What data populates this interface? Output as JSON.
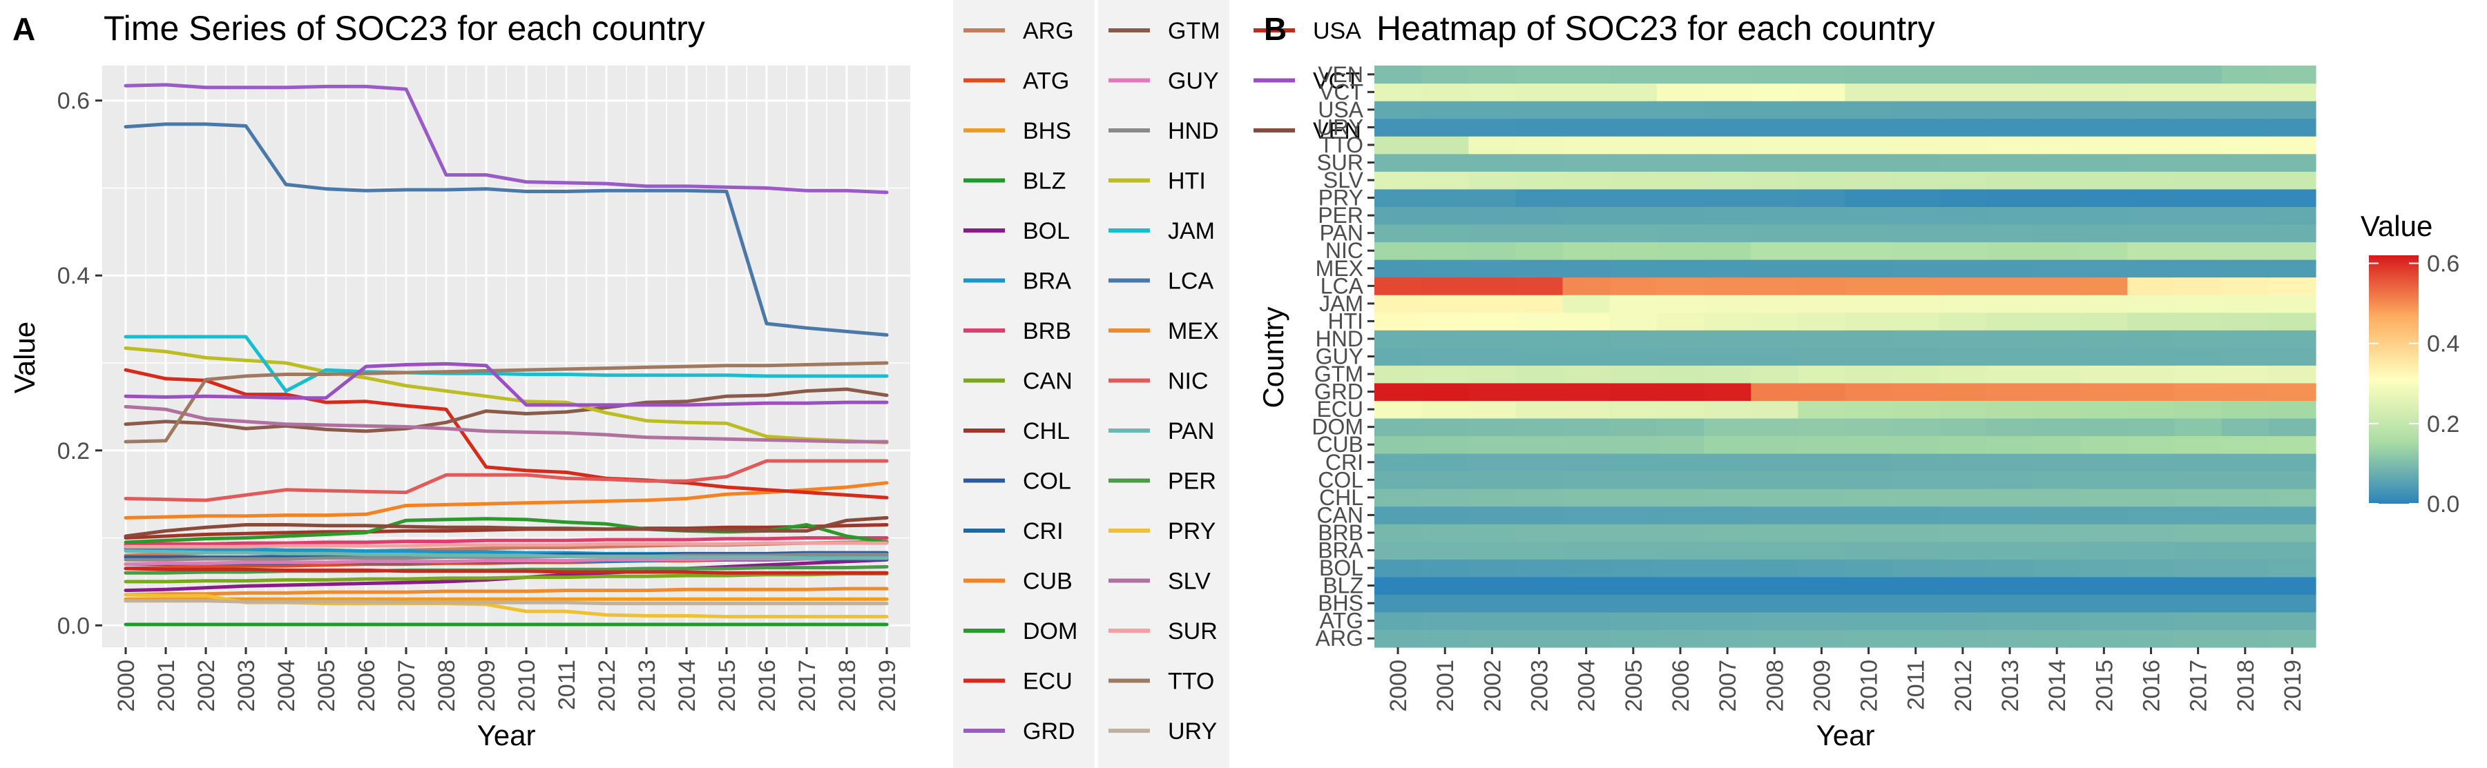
{
  "panel_a": {
    "letter": "A",
    "title": "Time Series of SOC23 for each country",
    "xlabel": "Year",
    "ylabel": "Value"
  },
  "panel_b": {
    "letter": "B",
    "title": "Heatmap of SOC23 for each country",
    "xlabel": "Year",
    "ylabel": "Country",
    "colorbar_title": "Value"
  },
  "colors": {
    "panel_background": "#ebebeb",
    "gridline": "#ffffff",
    "colorscale": [
      "#2b83ba",
      "#abdda4",
      "#ffffbf",
      "#fdae61",
      "#d7191c"
    ]
  },
  "chart_data": [
    {
      "type": "line",
      "title": "Time Series of SOC23 for each country",
      "xlabel": "Year",
      "ylabel": "Value",
      "ylim": [
        -0.025,
        0.64
      ],
      "yticks": [
        0.0,
        0.2,
        0.4,
        0.6
      ],
      "ytick_labels": [
        "0.0",
        "0.2",
        "0.4",
        "0.6"
      ],
      "grid": true,
      "legend_position": "right",
      "x": [
        "2000",
        "2001",
        "2002",
        "2003",
        "2004",
        "2005",
        "2006",
        "2007",
        "2008",
        "2009",
        "2010",
        "2011",
        "2012",
        "2013",
        "2014",
        "2015",
        "2016",
        "2017",
        "2018",
        "2019"
      ],
      "series": [
        {
          "name": "ARG",
          "color": "#c87a5c",
          "values": [
            0.08,
            0.081,
            0.083,
            0.083,
            0.083,
            0.084,
            0.085,
            0.086,
            0.087,
            0.088,
            0.089,
            0.089,
            0.09,
            0.091,
            0.092,
            0.092,
            0.093,
            0.094,
            0.095,
            0.096
          ]
        },
        {
          "name": "ATG",
          "color": "#e04a1c",
          "values": [
            0.065,
            0.066,
            0.067,
            0.068,
            0.068,
            0.069,
            0.07,
            0.07,
            0.071,
            0.071,
            0.072,
            0.072,
            0.073,
            0.074,
            0.074,
            0.075,
            0.076,
            0.077,
            0.077,
            0.078
          ]
        },
        {
          "name": "BHS",
          "color": "#f39a1a",
          "values": [
            0.03,
            0.03,
            0.03,
            0.03,
            0.03,
            0.03,
            0.03,
            0.03,
            0.03,
            0.03,
            0.03,
            0.03,
            0.03,
            0.03,
            0.03,
            0.03,
            0.03,
            0.03,
            0.03,
            0.03
          ]
        },
        {
          "name": "BLZ",
          "color": "#1c9a2a",
          "values": [
            0.001,
            0.001,
            0.001,
            0.001,
            0.001,
            0.001,
            0.001,
            0.001,
            0.001,
            0.001,
            0.001,
            0.001,
            0.001,
            0.001,
            0.001,
            0.001,
            0.001,
            0.001,
            0.001,
            0.001
          ]
        },
        {
          "name": "BOL",
          "color": "#8b1a8b",
          "values": [
            0.04,
            0.041,
            0.043,
            0.045,
            0.046,
            0.047,
            0.048,
            0.049,
            0.05,
            0.052,
            0.055,
            0.058,
            0.06,
            0.062,
            0.065,
            0.067,
            0.069,
            0.071,
            0.073,
            0.075
          ]
        },
        {
          "name": "BRA",
          "color": "#1a95c8",
          "values": [
            0.088,
            0.088,
            0.087,
            0.087,
            0.086,
            0.086,
            0.085,
            0.085,
            0.084,
            0.084,
            0.083,
            0.083,
            0.082,
            0.082,
            0.082,
            0.081,
            0.081,
            0.08,
            0.08,
            0.08
          ]
        },
        {
          "name": "BRB",
          "color": "#e03c6e",
          "values": [
            0.092,
            0.093,
            0.093,
            0.094,
            0.094,
            0.095,
            0.095,
            0.096,
            0.096,
            0.097,
            0.097,
            0.097,
            0.098,
            0.098,
            0.098,
            0.099,
            0.099,
            0.1,
            0.1,
            0.1
          ]
        },
        {
          "name": "CAN",
          "color": "#7aa81a",
          "values": [
            0.05,
            0.05,
            0.051,
            0.051,
            0.052,
            0.052,
            0.053,
            0.053,
            0.054,
            0.054,
            0.055,
            0.055,
            0.056,
            0.056,
            0.057,
            0.057,
            0.058,
            0.058,
            0.059,
            0.059
          ]
        },
        {
          "name": "CHL",
          "color": "#a0362a",
          "values": [
            0.1,
            0.102,
            0.104,
            0.105,
            0.106,
            0.107,
            0.107,
            0.108,
            0.108,
            0.109,
            0.11,
            0.11,
            0.11,
            0.111,
            0.111,
            0.112,
            0.112,
            0.113,
            0.114,
            0.115
          ]
        },
        {
          "name": "COL",
          "color": "#2a5a9a",
          "values": [
            0.078,
            0.078,
            0.078,
            0.078,
            0.079,
            0.079,
            0.079,
            0.08,
            0.08,
            0.08,
            0.08,
            0.081,
            0.081,
            0.081,
            0.082,
            0.082,
            0.082,
            0.083,
            0.083,
            0.083
          ]
        },
        {
          "name": "CRI",
          "color": "#1a6aa8",
          "values": [
            0.07,
            0.07,
            0.071,
            0.071,
            0.071,
            0.072,
            0.072,
            0.072,
            0.073,
            0.073,
            0.073,
            0.074,
            0.074,
            0.074,
            0.075,
            0.075,
            0.075,
            0.076,
            0.076,
            0.076
          ]
        },
        {
          "name": "CUB",
          "color": "#f58220",
          "values": [
            0.123,
            0.124,
            0.125,
            0.125,
            0.126,
            0.126,
            0.127,
            0.137,
            0.138,
            0.139,
            0.14,
            0.141,
            0.142,
            0.143,
            0.145,
            0.15,
            0.152,
            0.155,
            0.158,
            0.163
          ]
        },
        {
          "name": "DOM",
          "color": "#2a9a2a",
          "values": [
            0.095,
            0.097,
            0.099,
            0.1,
            0.102,
            0.104,
            0.106,
            0.12,
            0.121,
            0.122,
            0.121,
            0.118,
            0.116,
            0.11,
            0.108,
            0.107,
            0.108,
            0.115,
            0.102,
            0.095
          ]
        },
        {
          "name": "ECU",
          "color": "#d62a1a",
          "values": [
            0.292,
            0.282,
            0.28,
            0.264,
            0.264,
            0.255,
            0.256,
            0.251,
            0.247,
            0.181,
            0.177,
            0.175,
            0.168,
            0.166,
            0.163,
            0.158,
            0.155,
            0.152,
            0.149,
            0.146
          ]
        },
        {
          "name": "GRD",
          "color": "#9a5ac8",
          "values": [
            0.617,
            0.618,
            0.615,
            0.615,
            0.615,
            0.616,
            0.616,
            0.613,
            0.515,
            0.515,
            0.507,
            0.506,
            0.505,
            0.502,
            0.502,
            0.501,
            0.5,
            0.497,
            0.497,
            0.495
          ]
        },
        {
          "name": "GTM",
          "color": "#8a5a4a",
          "values": [
            0.23,
            0.233,
            0.231,
            0.225,
            0.228,
            0.224,
            0.222,
            0.225,
            0.232,
            0.245,
            0.242,
            0.244,
            0.249,
            0.255,
            0.256,
            0.262,
            0.263,
            0.268,
            0.27,
            0.263
          ]
        },
        {
          "name": "GUY",
          "color": "#e07ab8",
          "values": [
            0.07,
            0.071,
            0.071,
            0.072,
            0.072,
            0.072,
            0.073,
            0.073,
            0.073,
            0.074,
            0.074,
            0.074,
            0.075,
            0.075,
            0.075,
            0.076,
            0.076,
            0.076,
            0.077,
            0.077
          ]
        },
        {
          "name": "HND",
          "color": "#8a8a8a",
          "values": [
            0.075,
            0.075,
            0.076,
            0.076,
            0.076,
            0.077,
            0.077,
            0.077,
            0.078,
            0.078,
            0.078,
            0.079,
            0.079,
            0.079,
            0.08,
            0.08,
            0.08,
            0.081,
            0.081,
            0.081
          ]
        },
        {
          "name": "HTI",
          "color": "#bdbd22",
          "values": [
            0.317,
            0.313,
            0.306,
            0.303,
            0.3,
            0.29,
            0.283,
            0.274,
            0.268,
            0.262,
            0.256,
            0.255,
            0.243,
            0.234,
            0.232,
            0.231,
            0.216,
            0.213,
            0.211,
            0.209
          ]
        },
        {
          "name": "JAM",
          "color": "#17becf",
          "values": [
            0.33,
            0.33,
            0.33,
            0.33,
            0.268,
            0.292,
            0.29,
            0.289,
            0.288,
            0.288,
            0.287,
            0.287,
            0.286,
            0.286,
            0.286,
            0.286,
            0.285,
            0.285,
            0.285,
            0.285
          ]
        },
        {
          "name": "LCA",
          "color": "#4a78a8",
          "values": [
            0.57,
            0.573,
            0.573,
            0.571,
            0.504,
            0.499,
            0.497,
            0.498,
            0.498,
            0.499,
            0.496,
            0.496,
            0.497,
            0.497,
            0.497,
            0.496,
            0.345,
            0.34,
            0.336,
            0.332
          ]
        },
        {
          "name": "MEX",
          "color": "#f08a2a",
          "values": [
            0.035,
            0.036,
            0.036,
            0.037,
            0.037,
            0.038,
            0.038,
            0.038,
            0.039,
            0.039,
            0.039,
            0.04,
            0.04,
            0.04,
            0.041,
            0.041,
            0.041,
            0.041,
            0.042,
            0.042
          ]
        },
        {
          "name": "NIC",
          "color": "#e05a5a",
          "values": [
            0.145,
            0.144,
            0.143,
            0.149,
            0.155,
            0.154,
            0.153,
            0.152,
            0.172,
            0.172,
            0.172,
            0.168,
            0.167,
            0.165,
            0.165,
            0.17,
            0.188,
            0.188,
            0.188,
            0.188
          ]
        },
        {
          "name": "PAN",
          "color": "#6ab8b0",
          "values": [
            0.085,
            0.084,
            0.083,
            0.083,
            0.082,
            0.082,
            0.081,
            0.081,
            0.08,
            0.08,
            0.08,
            0.079,
            0.079,
            0.079,
            0.078,
            0.078,
            0.078,
            0.077,
            0.077,
            0.077
          ]
        },
        {
          "name": "PER",
          "color": "#4a9a4a",
          "values": [
            0.06,
            0.06,
            0.061,
            0.061,
            0.062,
            0.062,
            0.062,
            0.063,
            0.063,
            0.063,
            0.064,
            0.064,
            0.064,
            0.065,
            0.065,
            0.065,
            0.066,
            0.066,
            0.066,
            0.067
          ]
        },
        {
          "name": "PRY",
          "color": "#f0c030",
          "values": [
            0.035,
            0.034,
            0.034,
            0.026,
            0.026,
            0.025,
            0.025,
            0.025,
            0.025,
            0.024,
            0.016,
            0.016,
            0.012,
            0.011,
            0.011,
            0.01,
            0.01,
            0.01,
            0.01,
            0.01
          ]
        },
        {
          "name": "SLV",
          "color": "#b070a0",
          "values": [
            0.25,
            0.247,
            0.236,
            0.233,
            0.23,
            0.229,
            0.228,
            0.227,
            0.225,
            0.222,
            0.221,
            0.22,
            0.218,
            0.215,
            0.214,
            0.213,
            0.212,
            0.211,
            0.21,
            0.21
          ]
        },
        {
          "name": "SUR",
          "color": "#f4a0a0",
          "values": [
            0.09,
            0.09,
            0.09,
            0.09,
            0.091,
            0.091,
            0.091,
            0.091,
            0.092,
            0.092,
            0.092,
            0.092,
            0.093,
            0.093,
            0.093,
            0.093,
            0.094,
            0.094,
            0.094,
            0.094
          ]
        },
        {
          "name": "TTO",
          "color": "#a07a60",
          "values": [
            0.21,
            0.211,
            0.281,
            0.285,
            0.287,
            0.287,
            0.288,
            0.289,
            0.29,
            0.291,
            0.292,
            0.293,
            0.294,
            0.295,
            0.296,
            0.297,
            0.297,
            0.298,
            0.299,
            0.3
          ]
        },
        {
          "name": "URY",
          "color": "#c0b0a0",
          "values": [
            0.028,
            0.028,
            0.028,
            0.027,
            0.027,
            0.027,
            0.027,
            0.026,
            0.026,
            0.026,
            0.026,
            0.026,
            0.025,
            0.025,
            0.025,
            0.025,
            0.025,
            0.025,
            0.025,
            0.025
          ]
        },
        {
          "name": "USA",
          "color": "#c8281e",
          "values": [
            0.065,
            0.064,
            0.064,
            0.064,
            0.063,
            0.063,
            0.063,
            0.062,
            0.062,
            0.062,
            0.062,
            0.061,
            0.061,
            0.061,
            0.061,
            0.06,
            0.06,
            0.06,
            0.06,
            0.06
          ]
        },
        {
          "name": "VCT",
          "color": "#9a50c0",
          "values": [
            0.262,
            0.261,
            0.262,
            0.261,
            0.26,
            0.26,
            0.296,
            0.298,
            0.299,
            0.297,
            0.252,
            0.252,
            0.252,
            0.252,
            0.252,
            0.253,
            0.254,
            0.254,
            0.255,
            0.255
          ]
        },
        {
          "name": "VEN",
          "color": "#8a4a3a",
          "values": [
            0.102,
            0.108,
            0.112,
            0.115,
            0.115,
            0.114,
            0.114,
            0.113,
            0.112,
            0.112,
            0.111,
            0.111,
            0.11,
            0.11,
            0.109,
            0.109,
            0.108,
            0.108,
            0.12,
            0.123
          ]
        }
      ]
    },
    {
      "type": "heatmap",
      "title": "Heatmap of SOC23 for each country",
      "xlabel": "Year",
      "ylabel": "Country",
      "x": [
        "2000",
        "2001",
        "2002",
        "2003",
        "2004",
        "2005",
        "2006",
        "2007",
        "2008",
        "2009",
        "2010",
        "2011",
        "2012",
        "2013",
        "2014",
        "2015",
        "2016",
        "2017",
        "2018",
        "2019"
      ],
      "y": [
        "ARG",
        "ATG",
        "BHS",
        "BLZ",
        "BOL",
        "BRA",
        "BRB",
        "CAN",
        "CHL",
        "COL",
        "CRI",
        "CUB",
        "DOM",
        "ECU",
        "GRD",
        "GTM",
        "GUY",
        "HND",
        "HTI",
        "JAM",
        "LCA",
        "MEX",
        "NIC",
        "PAN",
        "PER",
        "PRY",
        "SLV",
        "SUR",
        "TTO",
        "URY",
        "USA",
        "VCT",
        "VEN"
      ],
      "colorbar_title": "Value",
      "colorbar_range": [
        0.0,
        0.62
      ],
      "colorbar_ticks": [
        0.0,
        0.2,
        0.4,
        0.6
      ],
      "colorbar_tick_labels": [
        "0.0",
        "0.2",
        "0.4",
        "0.6"
      ],
      "legend_position": "right"
    }
  ]
}
